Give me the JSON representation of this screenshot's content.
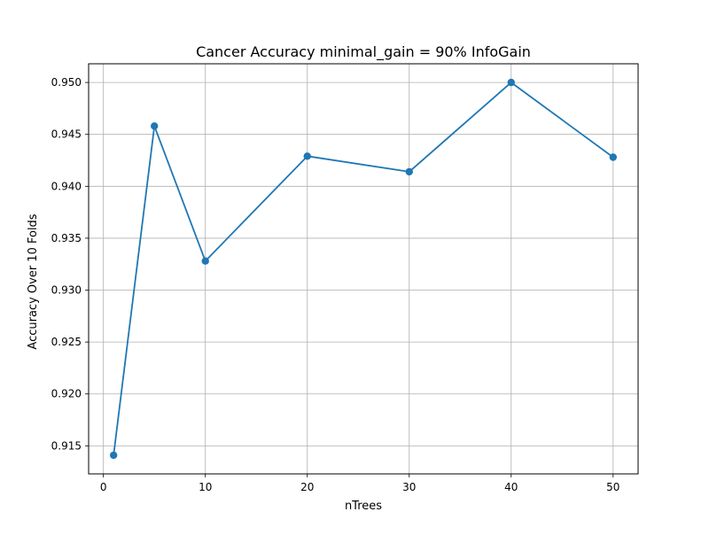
{
  "chart_data": {
    "type": "line",
    "title": "Cancer Accuracy minimal_gain = 90% InfoGain",
    "xlabel": "nTrees",
    "ylabel": "Accuracy Over 10 Folds",
    "x": [
      1,
      5,
      10,
      20,
      30,
      40,
      50
    ],
    "series": [
      {
        "values": [
          0.9141,
          0.9458,
          0.9328,
          0.9429,
          0.9414,
          0.95,
          0.9428
        ]
      }
    ],
    "xlim": [
      -1.45,
      52.45
    ],
    "ylim": [
      0.9123,
      0.9518
    ],
    "xticks": [
      0,
      10,
      20,
      30,
      40,
      50
    ],
    "xtick_labels": [
      "0",
      "10",
      "20",
      "30",
      "40",
      "50"
    ],
    "yticks": [
      0.915,
      0.92,
      0.925,
      0.93,
      0.935,
      0.94,
      0.945,
      0.95
    ],
    "ytick_labels": [
      "0.915",
      "0.920",
      "0.925",
      "0.930",
      "0.935",
      "0.940",
      "0.945",
      "0.950"
    ],
    "grid": true,
    "marker": "circle",
    "line_color": "#1f77b4"
  }
}
